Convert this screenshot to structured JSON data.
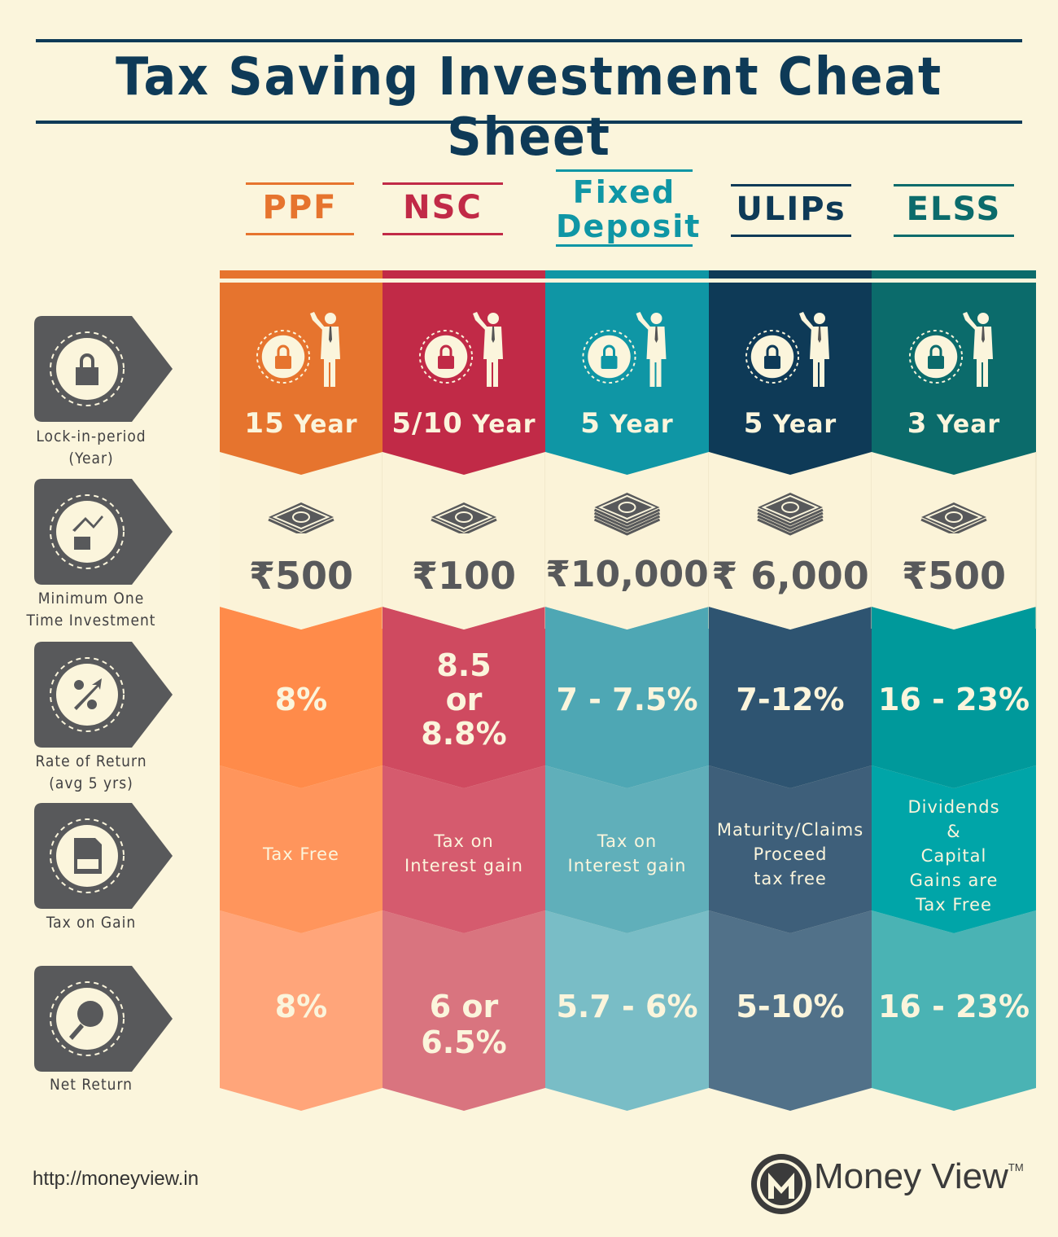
{
  "title": "Tax Saving Investment Cheat Sheet",
  "colors": {
    "navy": "#0e3a57",
    "ppf": "#e6742e",
    "nsc": "#c12a47",
    "fd": "#0f96a5",
    "ulips": "#0e3a57",
    "elss": "#0b6b6b",
    "cream": "#fbf5dc",
    "gray_icon": "#58595b"
  },
  "columns": [
    {
      "name": "PPF",
      "lock_num": "15",
      "lock_unit": "Year",
      "min_investment": "₹500",
      "rate_of_return": [
        "8%"
      ],
      "tax_on_gain": [
        "Tax Free"
      ],
      "net_return": "8%"
    },
    {
      "name": "NSC",
      "lock_num": "5/10",
      "lock_unit": "Year",
      "min_investment": "₹100",
      "rate_of_return": [
        "8.5",
        "or",
        "8.8%"
      ],
      "tax_on_gain": [
        "Tax on",
        "Interest gain"
      ],
      "net_return": "6 or 6.5%"
    },
    {
      "name_lines": [
        "Fixed",
        "Deposit"
      ],
      "lock_num": "5",
      "lock_unit": "Year",
      "min_investment": "₹10,000",
      "rate_of_return": [
        "7 - 7.5%"
      ],
      "tax_on_gain": [
        "Tax on",
        "Interest gain"
      ],
      "net_return": "5.7 - 6%"
    },
    {
      "name": "ULIPs",
      "lock_num": "5",
      "lock_unit": "Year",
      "min_investment": "₹ 6,000",
      "rate_of_return": [
        "7-12%"
      ],
      "tax_on_gain": [
        "Maturity/Claims",
        "Proceed",
        "tax free"
      ],
      "net_return": "5-10%"
    },
    {
      "name": "ELSS",
      "lock_num": "3",
      "lock_unit": "Year",
      "min_investment": "₹500",
      "rate_of_return": [
        "16 - 23%"
      ],
      "tax_on_gain": [
        "Dividends",
        "&",
        "Capital",
        "Gains are",
        "Tax Free"
      ],
      "net_return": "16 - 23%"
    }
  ],
  "row_labels": [
    [
      "Lock-in-period",
      "(Year)"
    ],
    [
      "Minimum One",
      "Time Investment"
    ],
    [
      "Rate of Return",
      "(avg 5 yrs)"
    ],
    [
      "Tax on Gain"
    ],
    [
      "Net Return"
    ]
  ],
  "row_icons": [
    "lock-icon",
    "growth-coins-icon",
    "percent-growth-icon",
    "tax-document-icon",
    "percent-magnifier-icon"
  ],
  "footer": {
    "url": "http://moneyview.in",
    "brand": "Money View",
    "trademark": "TM"
  }
}
